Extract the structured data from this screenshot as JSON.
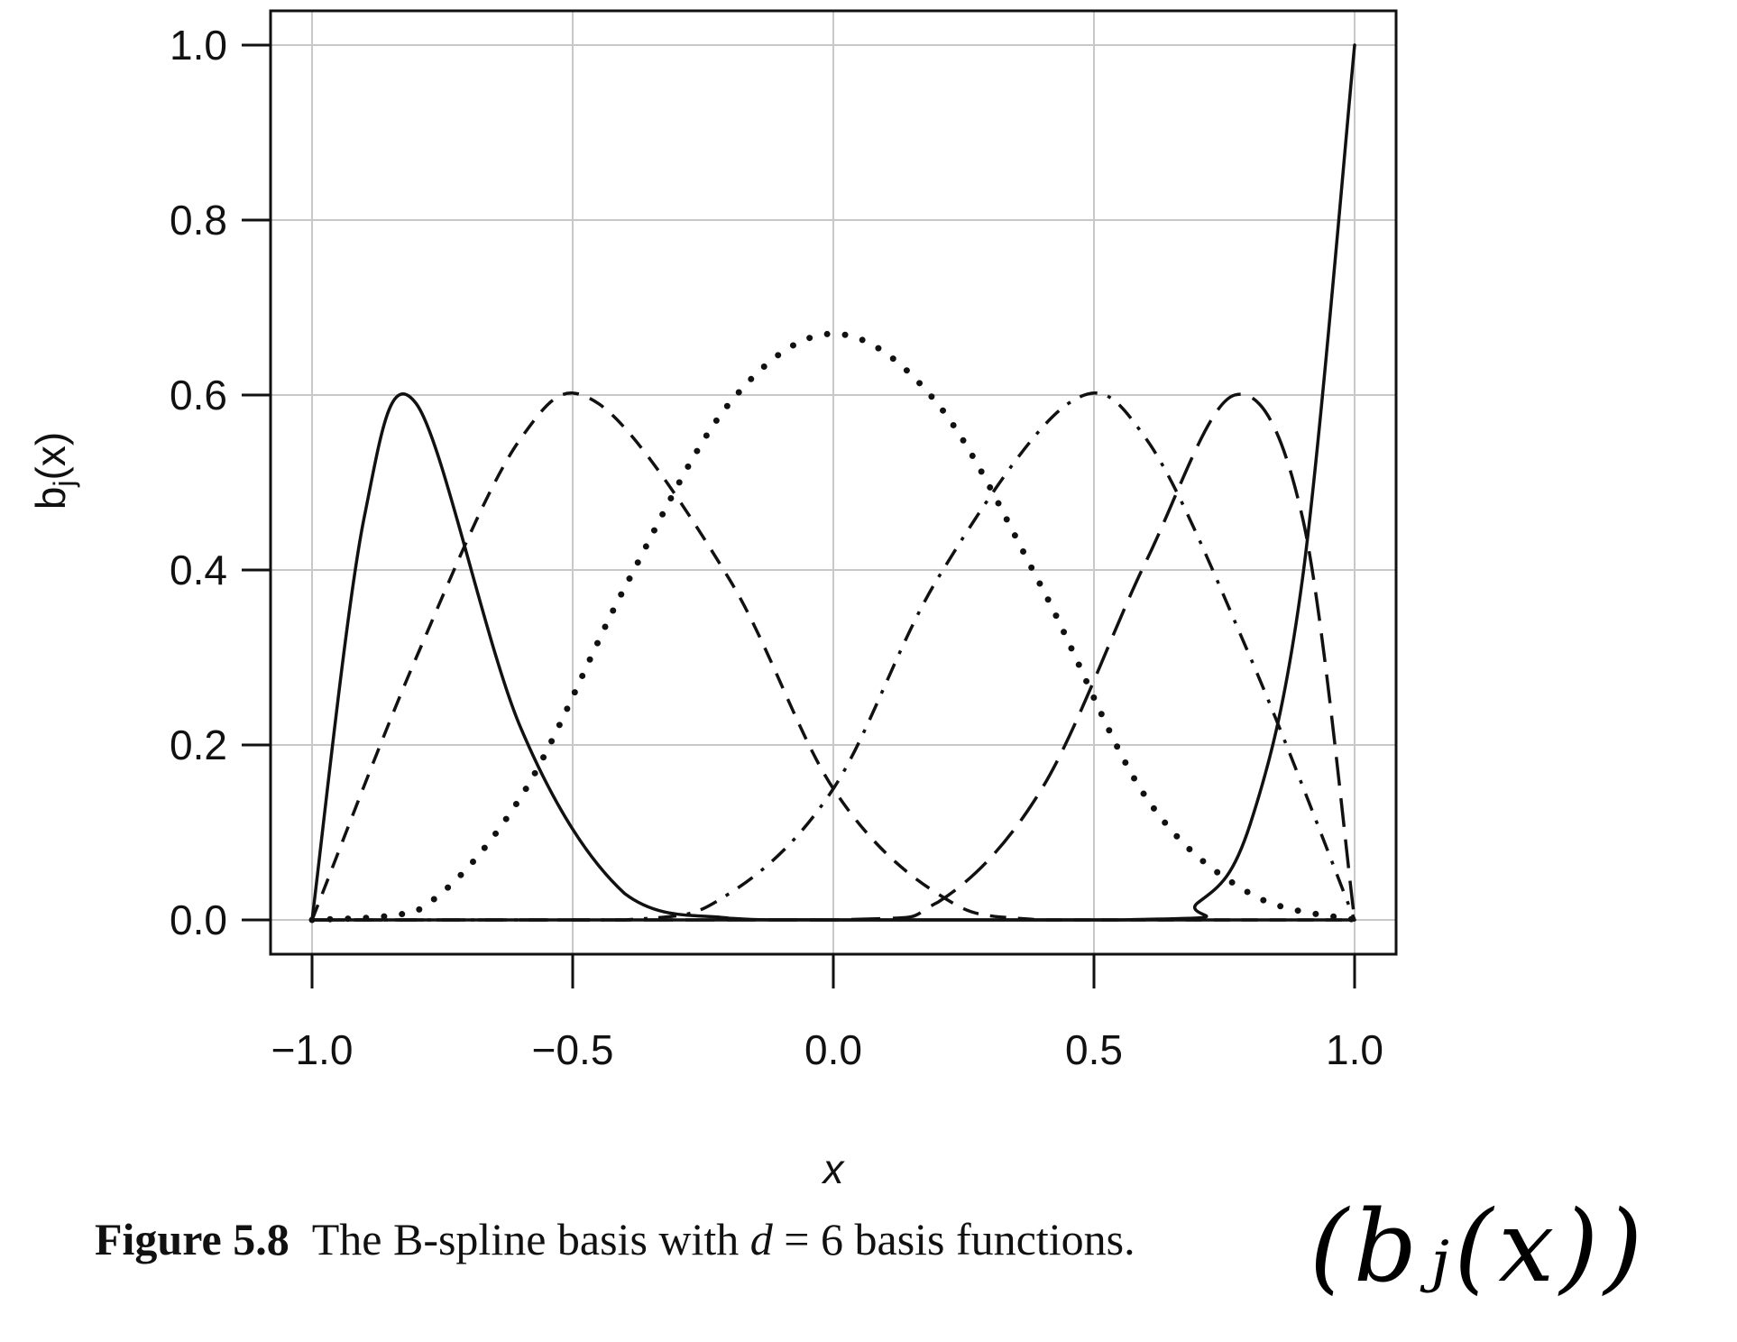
{
  "chart_data": {
    "type": "line",
    "title": "",
    "xlabel": "x",
    "ylabel": "b",
    "ylabel_sub": "j",
    "ylabel_arg": "(x)",
    "xlim": [
      -1.0,
      1.0
    ],
    "ylim": [
      0.0,
      1.0
    ],
    "x_ticks": [
      -1.0,
      -0.5,
      0.0,
      0.5,
      1.0
    ],
    "x_tick_labels": [
      "−1.0",
      "−0.5",
      "0.0",
      "0.5",
      "1.0"
    ],
    "y_ticks": [
      0.0,
      0.2,
      0.4,
      0.6,
      0.8,
      1.0
    ],
    "y_tick_labels": [
      "0.0",
      "0.2",
      "0.4",
      "0.6",
      "0.8",
      "1.0"
    ],
    "grid": true,
    "series": [
      {
        "line_style": "solid",
        "x": [
          -1.0,
          -0.9,
          -0.8,
          -0.6,
          -0.4,
          -0.2,
          0.0,
          1.0
        ],
        "y": [
          0.0,
          0.46,
          0.59,
          0.22,
          0.03,
          0.002,
          0.0,
          0.0
        ]
      },
      {
        "line_style": "dashed",
        "x": [
          -1.0,
          -0.8,
          -0.6,
          -0.45,
          -0.2,
          0.0,
          0.2,
          0.4,
          1.0
        ],
        "y": [
          0.0,
          0.3,
          0.55,
          0.59,
          0.39,
          0.15,
          0.03,
          0.0,
          0.0
        ]
      },
      {
        "line_style": "dotted",
        "x": [
          -1.0,
          -0.8,
          -0.6,
          -0.4,
          -0.2,
          0.0,
          0.2,
          0.4,
          0.6,
          0.8,
          1.0
        ],
        "y": [
          0.0,
          0.01,
          0.14,
          0.38,
          0.59,
          0.67,
          0.59,
          0.38,
          0.14,
          0.03,
          0.0
        ]
      },
      {
        "line_style": "dashdot",
        "x": [
          -1.0,
          -0.4,
          -0.2,
          0.0,
          0.2,
          0.45,
          0.6,
          0.8,
          1.0
        ],
        "y": [
          0.0,
          0.0,
          0.03,
          0.15,
          0.39,
          0.59,
          0.55,
          0.3,
          0.0
        ]
      },
      {
        "line_style": "longdash",
        "x": [
          -1.0,
          0.0,
          0.2,
          0.4,
          0.6,
          0.77,
          0.9,
          1.0
        ],
        "y": [
          0.0,
          0.0,
          0.02,
          0.15,
          0.41,
          0.6,
          0.46,
          0.0
        ]
      },
      {
        "line_style": "solid",
        "x": [
          -1.0,
          0.55,
          0.7,
          0.8,
          0.9,
          1.0
        ],
        "y": [
          0.0,
          0.0,
          0.02,
          0.11,
          0.39,
          1.0
        ]
      }
    ]
  },
  "caption": {
    "label": "Figure 5.8",
    "text_before": "The B-spline basis with",
    "variable": "d",
    "text_after": "= 6 basis functions."
  },
  "annotation": {
    "handwritten": "(bⱼ(x))"
  }
}
